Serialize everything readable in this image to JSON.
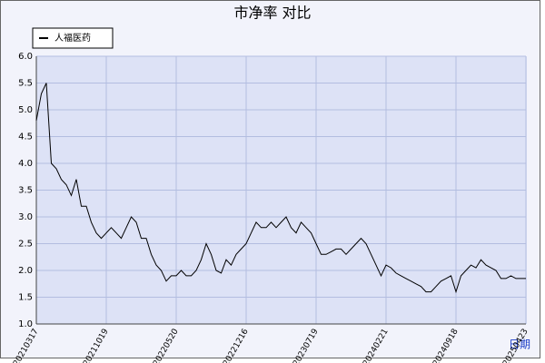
{
  "chart_data": {
    "type": "line",
    "title": "市净率  对比",
    "x_label": "日期",
    "categories": [
      "20210317",
      null,
      null,
      null,
      null,
      null,
      null,
      null,
      null,
      null,
      null,
      null,
      null,
      null,
      "20211019",
      null,
      null,
      null,
      null,
      null,
      null,
      null,
      null,
      null,
      null,
      null,
      null,
      null,
      "20220520",
      null,
      null,
      null,
      null,
      null,
      null,
      null,
      null,
      null,
      null,
      null,
      null,
      null,
      "20221216",
      null,
      null,
      null,
      null,
      null,
      null,
      null,
      null,
      null,
      null,
      null,
      null,
      null,
      "20230719",
      null,
      null,
      null,
      null,
      null,
      null,
      null,
      null,
      null,
      null,
      null,
      null,
      null,
      "20240221",
      null,
      null,
      null,
      null,
      null,
      null,
      null,
      null,
      null,
      null,
      null,
      null,
      null,
      "20240918",
      null,
      null,
      null,
      null,
      null,
      null,
      null,
      null,
      null,
      null,
      null,
      null,
      null,
      "20250423"
    ],
    "series": [
      {
        "name": "人福医药",
        "color": "#000000",
        "values": [
          4.8,
          5.3,
          5.5,
          4.0,
          3.9,
          3.7,
          3.6,
          3.4,
          3.7,
          3.2,
          3.2,
          2.9,
          2.7,
          2.6,
          2.7,
          2.8,
          2.7,
          2.6,
          2.8,
          3.0,
          2.9,
          2.6,
          2.6,
          2.3,
          2.1,
          2.0,
          1.8,
          1.9,
          1.9,
          2.0,
          1.9,
          1.9,
          2.0,
          2.2,
          2.5,
          2.3,
          2.0,
          1.95,
          2.2,
          2.1,
          2.3,
          2.4,
          2.5,
          2.7,
          2.9,
          2.8,
          2.8,
          2.9,
          2.8,
          2.9,
          3.0,
          2.8,
          2.7,
          2.9,
          2.8,
          2.7,
          2.5,
          2.3,
          2.3,
          2.35,
          2.4,
          2.4,
          2.3,
          2.4,
          2.5,
          2.6,
          2.5,
          2.3,
          2.1,
          1.9,
          2.1,
          2.05,
          1.95,
          1.9,
          1.85,
          1.8,
          1.75,
          1.7,
          1.6,
          1.6,
          1.7,
          1.8,
          1.85,
          1.9,
          1.6,
          1.9,
          2.0,
          2.1,
          2.05,
          2.2,
          2.1,
          2.05,
          2.0,
          1.85,
          1.85,
          1.9,
          1.85,
          1.85,
          1.85
        ]
      }
    ],
    "ylim": [
      1.0,
      6.0
    ],
    "yticks": [
      {
        "value": 1.0,
        "label": "1.0"
      },
      {
        "value": 1.5,
        "label": "1.5"
      },
      {
        "value": 2.0,
        "label": "2.0"
      },
      {
        "value": 2.5,
        "label": "2.5"
      },
      {
        "value": 3.0,
        "label": "3.0"
      },
      {
        "value": 3.5,
        "label": "3.5"
      },
      {
        "value": 4.0,
        "label": "4.0"
      },
      {
        "value": 4.5,
        "label": "4.5"
      },
      {
        "value": 5.0,
        "label": "5.0"
      },
      {
        "value": 5.5,
        "label": "5.5"
      },
      {
        "value": 6.0,
        "label": "6.0"
      }
    ],
    "grid": true
  }
}
